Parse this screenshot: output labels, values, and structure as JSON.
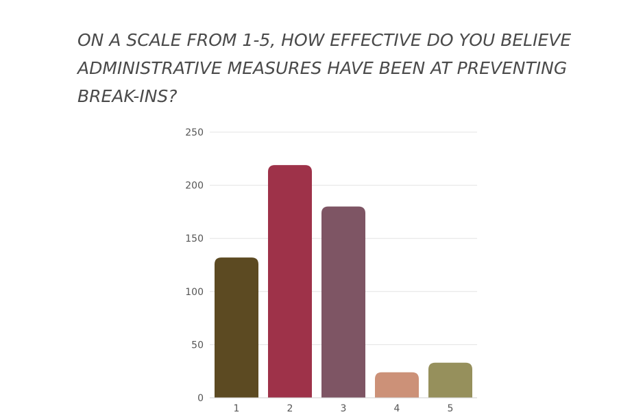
{
  "chart_data": {
    "type": "bar",
    "title": "ON A SCALE FROM 1-5, HOW EFFECTIVE DO YOU BELIEVE ADMINISTRATIVE MEASURES HAVE BEEN AT PREVENTING BREAK-INS?",
    "categories": [
      "1",
      "2",
      "3",
      "4",
      "5"
    ],
    "values": [
      132,
      219,
      180,
      24,
      33
    ],
    "colors": [
      "#5c4a22",
      "#9e3249",
      "#7e5564",
      "#cc9178",
      "#96905c"
    ],
    "ylim": [
      0,
      250
    ],
    "yticks": [
      0,
      50,
      100,
      150,
      200,
      250
    ],
    "grid": true,
    "legend": "none"
  }
}
